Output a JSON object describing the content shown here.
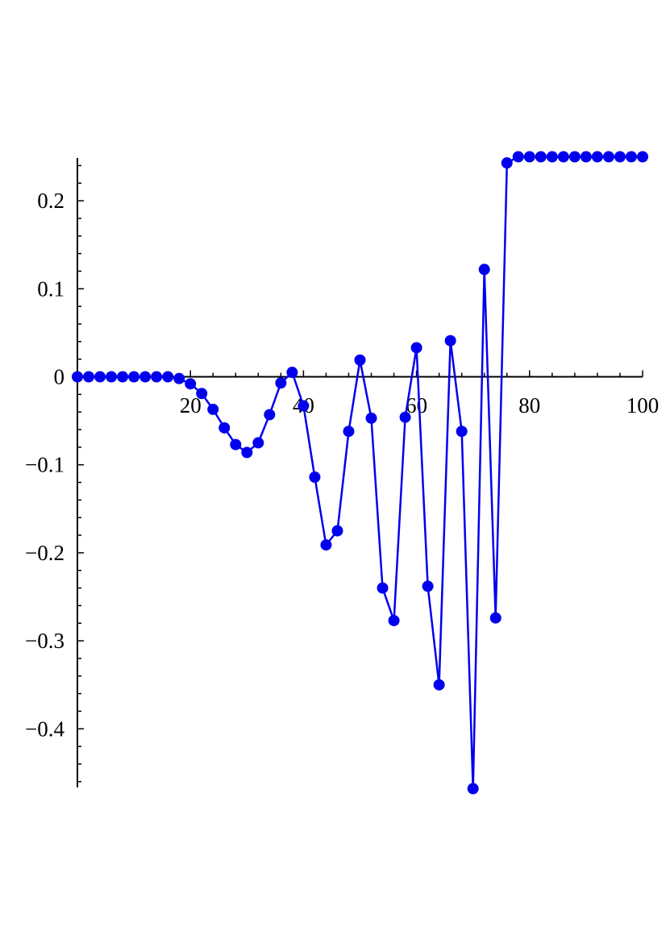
{
  "chart_data": {
    "type": "line",
    "title": "",
    "xlabel": "",
    "ylabel": "",
    "xlim": [
      0,
      100
    ],
    "ylim": [
      -0.47,
      0.25
    ],
    "grid": false,
    "legend": "none",
    "x_ticks": [
      {
        "value": 20,
        "label": "20"
      },
      {
        "value": 40,
        "label": "40"
      },
      {
        "value": 60,
        "label": "60"
      },
      {
        "value": 80,
        "label": "80"
      },
      {
        "value": 100,
        "label": "100"
      }
    ],
    "y_ticks": [
      {
        "value": 0.2,
        "label": "0.2"
      },
      {
        "value": 0.1,
        "label": "0.1"
      },
      {
        "value": 0,
        "label": "0"
      },
      {
        "value": -0.1,
        "label": "−0.1"
      },
      {
        "value": -0.2,
        "label": "−0.2"
      },
      {
        "value": -0.3,
        "label": "−0.3"
      },
      {
        "value": -0.4,
        "label": "−0.4"
      }
    ],
    "series": [
      {
        "color": "#0000ee",
        "marker": "circle",
        "x": [
          0,
          2,
          4,
          6,
          8,
          10,
          12,
          14,
          16,
          18,
          20,
          22,
          24,
          26,
          28,
          30,
          32,
          34,
          36,
          38,
          40,
          42,
          44,
          46,
          48,
          50,
          52,
          54,
          56,
          58,
          60,
          62,
          64,
          66,
          68,
          70,
          72,
          74,
          76,
          78,
          80,
          82,
          84,
          86,
          88,
          90,
          92,
          94,
          96,
          98,
          100
        ],
        "y": [
          0,
          0,
          0,
          0,
          0,
          0,
          0,
          0,
          0,
          -0.002,
          -0.008,
          -0.019,
          -0.037,
          -0.058,
          -0.077,
          -0.086,
          -0.075,
          -0.043,
          -0.007,
          0.005,
          -0.033,
          -0.114,
          -0.191,
          -0.175,
          -0.062,
          0.019,
          -0.047,
          -0.24,
          -0.277,
          -0.046,
          0.033,
          -0.238,
          -0.35,
          0.041,
          -0.062,
          -0.468,
          0.122,
          -0.274,
          0.243,
          0.25,
          0.25,
          0.25,
          0.25,
          0.25,
          0.25,
          0.25,
          0.25,
          0.25,
          0.25,
          0.25,
          0.25
        ]
      }
    ]
  }
}
